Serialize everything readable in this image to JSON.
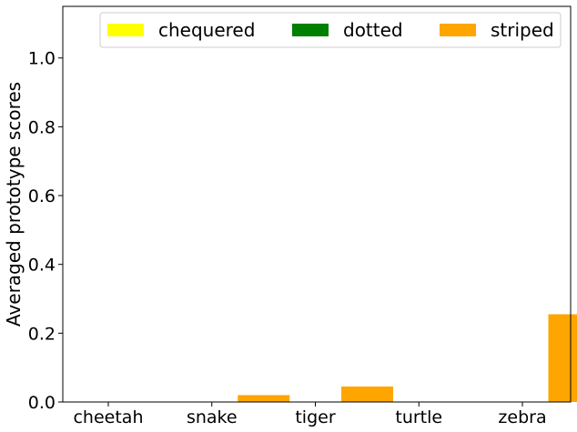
{
  "chart_data": {
    "type": "bar",
    "categories": [
      "cheetah",
      "snake",
      "tiger",
      "turtle",
      "zebra"
    ],
    "series": [
      {
        "name": "chequered",
        "color": "#ffff00",
        "values": [
          0.0,
          0.0,
          0.0,
          0.0,
          0.0
        ]
      },
      {
        "name": "dotted",
        "color": "#008000",
        "values": [
          0.0,
          0.0,
          0.0,
          0.0,
          0.0
        ]
      },
      {
        "name": "striped",
        "color": "#ffa500",
        "values": [
          0.0,
          0.02,
          0.045,
          0.0,
          0.255
        ]
      }
    ],
    "xlabel": "",
    "ylabel": "Averaged prototype scores",
    "ylim": [
      0,
      1.15
    ],
    "yticks": [
      0.0,
      0.2,
      0.4,
      0.6,
      0.8,
      1.0
    ],
    "ytick_labels": [
      "0.0",
      "0.2",
      "0.4",
      "0.6",
      "0.8",
      "1.0"
    ],
    "legend": {
      "position": "top-right",
      "ncol": 3
    },
    "grid": false
  }
}
